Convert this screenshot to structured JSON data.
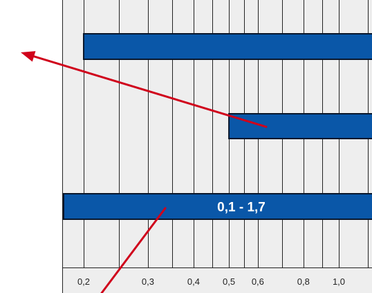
{
  "chart_data": {
    "type": "bar",
    "orientation": "horizontal",
    "x_scale": "log",
    "xlim": [
      0.15,
      1.4
    ],
    "grid": true,
    "x_ticks": [
      {
        "value": 0.2,
        "label": "0,2"
      },
      {
        "value": 0.3,
        "label": "0,3"
      },
      {
        "value": 0.4,
        "label": "0,4"
      },
      {
        "value": 0.5,
        "label": "0,5"
      },
      {
        "value": 0.6,
        "label": "0,6"
      },
      {
        "value": 0.8,
        "label": "0,8"
      },
      {
        "value": 1.0,
        "label": "1,0"
      }
    ],
    "minor_gridlines": [
      0.25,
      0.35,
      0.45,
      0.55,
      0.7,
      0.9,
      1.2
    ],
    "bars": [
      {
        "start": 0.2,
        "end": 1.4,
        "label": ""
      },
      {
        "start": 0.5,
        "end": 1.4,
        "label": ""
      },
      {
        "start": 0.1,
        "end": 1.7,
        "label": "0,1 - 1,7"
      }
    ],
    "annotation_arrows": 2
  },
  "colors": {
    "background": "#eeeeee",
    "bar_fill": "#0a57a8",
    "bar_stroke": "#08162b",
    "gridline": "#222222",
    "arrow": "#d0021b"
  }
}
